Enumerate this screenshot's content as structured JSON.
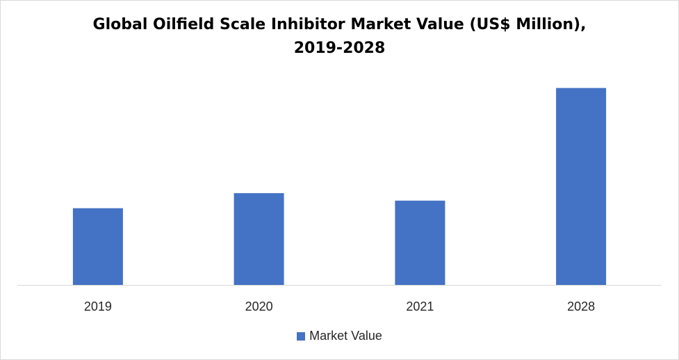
{
  "chart_data": {
    "type": "bar",
    "title_line1": "Global Oilfield Scale Inhibitor Market Value (US$ Million),",
    "title_line2": "2019-2028",
    "categories": [
      "2019",
      "2020",
      "2021",
      "2028"
    ],
    "series": [
      {
        "name": "Market Value",
        "values": [
          2.35,
          2.81,
          2.58,
          6.03
        ],
        "color": "#4472C4"
      }
    ],
    "xlabel": "",
    "ylabel": "",
    "ylim": [
      0,
      7
    ],
    "grid": false,
    "legend": "bottom"
  }
}
